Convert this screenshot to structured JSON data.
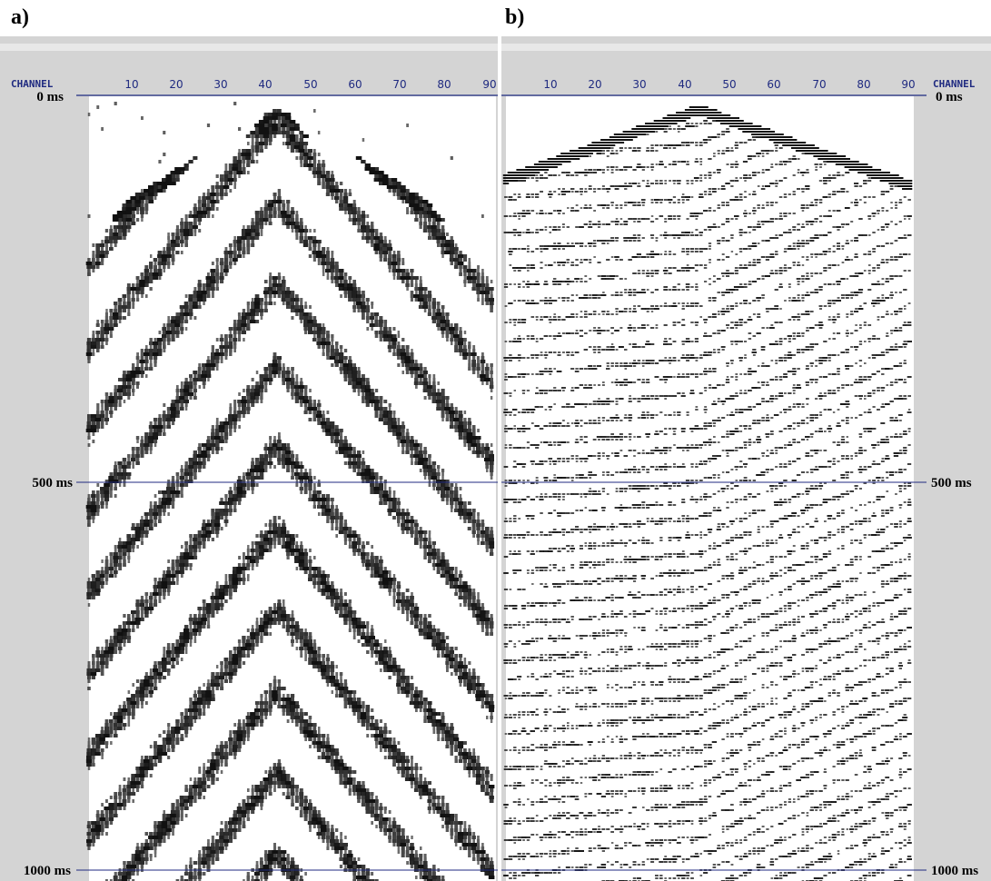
{
  "panels": [
    {
      "letter": "a)",
      "channel_label": "CHANNEL",
      "channel_ticks": [
        "10",
        "20",
        "30",
        "40",
        "50",
        "60",
        "70",
        "80",
        "90"
      ],
      "time_labels": [
        "0 ms",
        "500 ms",
        "1000 ms"
      ],
      "label_side": "left"
    },
    {
      "letter": "b)",
      "channel_label": "CHANNEL",
      "channel_ticks": [
        "10",
        "20",
        "30",
        "40",
        "50",
        "60",
        "70",
        "80",
        "90"
      ],
      "time_labels": [
        "0 ms",
        "500 ms",
        "1000 ms"
      ],
      "label_side": "right"
    }
  ],
  "colors": {
    "frame": "#d4d4d4",
    "axis": "#1f2a80",
    "trace": "#111111"
  }
}
